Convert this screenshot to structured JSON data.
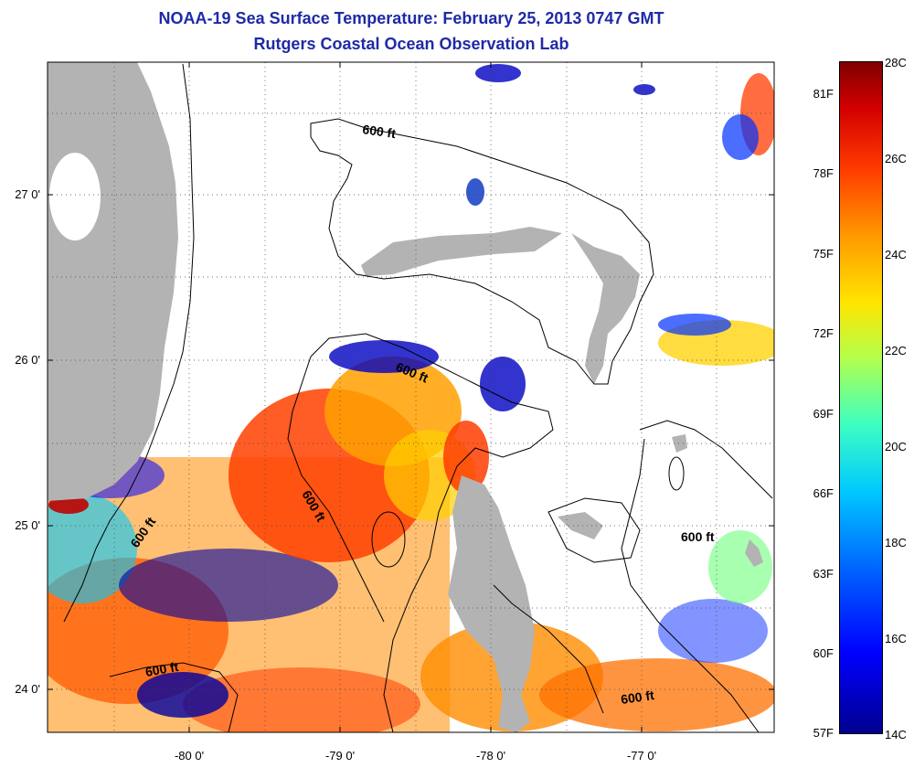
{
  "title_line1": "NOAA-19 Sea Surface Temperature:  February 25, 2013 0747 GMT",
  "title_line2": "Rutgers Coastal Ocean Observation Lab",
  "latitude_ticks": [
    "27 0'",
    "26 0'",
    "25 0'",
    "24 0'"
  ],
  "longitude_ticks": [
    "-80 0'",
    "-79 0'",
    "-78 0'",
    "-77 0'"
  ],
  "contour_labels": [
    "600 ft",
    "600 ft",
    "600 ft",
    "600 ft",
    "600 ft",
    "600 ft"
  ],
  "colorbar": {
    "fahrenheit": [
      "81F",
      "78F",
      "75F",
      "72F",
      "69F",
      "66F",
      "63F",
      "60F",
      "57F"
    ],
    "celsius": [
      "28C",
      "26C",
      "24C",
      "22C",
      "20C",
      "18C",
      "16C",
      "14C"
    ],
    "colors": [
      "#00008f",
      "#0000ff",
      "#0060ff",
      "#00c8ff",
      "#3dffc2",
      "#b4ff4b",
      "#ffe600",
      "#ff9a00",
      "#ff3c00",
      "#d40000",
      "#800000"
    ]
  },
  "land_color": "#b3b3b3"
}
